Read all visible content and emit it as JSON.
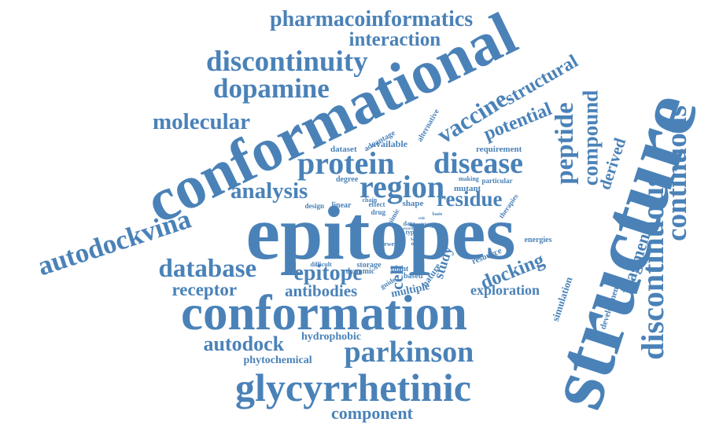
{
  "word_cloud": {
    "color": "#4a82b8",
    "words": [
      {
        "id": "pharmacoinformatics",
        "text": "pharmacoinformatics"
      },
      {
        "id": "interaction",
        "text": "interaction"
      },
      {
        "id": "discontinuity",
        "text": "discontinuity"
      },
      {
        "id": "dopamine",
        "text": "dopamine"
      },
      {
        "id": "conformational",
        "text": "conformational"
      },
      {
        "id": "molecular",
        "text": "molecular"
      },
      {
        "id": "structural",
        "text": "structural"
      },
      {
        "id": "vaccine",
        "text": "vaccine"
      },
      {
        "id": "potential",
        "text": "potential"
      },
      {
        "id": "compound",
        "text": "compound"
      },
      {
        "id": "peptide",
        "text": "peptide"
      },
      {
        "id": "structure",
        "text": "structure"
      },
      {
        "id": "continuous",
        "text": "continuous"
      },
      {
        "id": "discontinuous",
        "text": "discontinuous"
      },
      {
        "id": "protein",
        "text": "protein"
      },
      {
        "id": "disease",
        "text": "disease"
      },
      {
        "id": "region",
        "text": "region"
      },
      {
        "id": "analysis",
        "text": "analysis"
      },
      {
        "id": "autodockvina",
        "text": "autodockvina"
      },
      {
        "id": "epitopes",
        "text": "epitopes"
      },
      {
        "id": "residue",
        "text": "residue"
      },
      {
        "id": "derived",
        "text": "derived"
      },
      {
        "id": "fragment",
        "text": "fragment"
      },
      {
        "id": "database",
        "text": "database"
      },
      {
        "id": "epitope",
        "text": "epitope"
      },
      {
        "id": "cell",
        "text": "cell"
      },
      {
        "id": "study",
        "text": "study"
      },
      {
        "id": "docking",
        "text": "docking"
      },
      {
        "id": "receptor",
        "text": "receptor"
      },
      {
        "id": "antibodies",
        "text": "antibodies"
      },
      {
        "id": "multiple",
        "text": "multiple"
      },
      {
        "id": "exploration",
        "text": "exploration"
      },
      {
        "id": "conformation",
        "text": "conformation"
      },
      {
        "id": "autodock",
        "text": "autodock"
      },
      {
        "id": "hydrophobic",
        "text": "hydrophobic"
      },
      {
        "id": "phytochemical",
        "text": "phytochemical"
      },
      {
        "id": "parkinson",
        "text": "parkinson"
      },
      {
        "id": "glycyrrhetinic",
        "text": "glycyrrhetinic"
      },
      {
        "id": "component",
        "text": "component"
      },
      {
        "id": "simulation",
        "text": "simulation"
      },
      {
        "id": "development",
        "text": "development"
      },
      {
        "id": "energies",
        "text": "energies"
      },
      {
        "id": "advantage",
        "text": "advantage"
      },
      {
        "id": "alternative",
        "text": "alternative"
      },
      {
        "id": "available",
        "text": "available"
      },
      {
        "id": "dataset",
        "text": "dataset"
      },
      {
        "id": "requirement",
        "text": "requirement"
      },
      {
        "id": "degree",
        "text": "degree"
      },
      {
        "id": "making",
        "text": "making"
      },
      {
        "id": "particular",
        "text": "particular"
      },
      {
        "id": "mutant",
        "text": "mutant"
      },
      {
        "id": "chain",
        "text": "chain"
      },
      {
        "id": "effect",
        "text": "effect"
      },
      {
        "id": "drug",
        "text": "drug"
      },
      {
        "id": "design",
        "text": "design"
      },
      {
        "id": "linear",
        "text": "linear"
      },
      {
        "id": "shape",
        "text": "shape"
      },
      {
        "id": "therapies",
        "text": "therapies"
      },
      {
        "id": "mimic",
        "text": "mimic"
      },
      {
        "id": "data",
        "text": "data"
      },
      {
        "id": "type",
        "text": "type"
      },
      {
        "id": "safety",
        "text": "safety"
      },
      {
        "id": "order",
        "text": "order"
      },
      {
        "id": "basis",
        "text": "basis"
      },
      {
        "id": "fewer",
        "text": "fewer"
      },
      {
        "id": "difficult",
        "text": "difficult"
      },
      {
        "id": "storage",
        "text": "storage"
      },
      {
        "id": "guide",
        "text": "guide"
      },
      {
        "id": "dynamic",
        "text": "dynamic"
      },
      {
        "id": "based",
        "text": "based"
      },
      {
        "id": "nature",
        "text": "nature"
      },
      {
        "id": "resource",
        "text": "resource"
      },
      {
        "id": "plant",
        "text": "plant"
      },
      {
        "id": "clean",
        "text": "clean"
      },
      {
        "id": "few",
        "text": "few"
      },
      {
        "id": "exactly",
        "text": "exactly"
      },
      {
        "id": "role",
        "text": "role"
      },
      {
        "id": "ability",
        "text": "ability"
      }
    ]
  }
}
